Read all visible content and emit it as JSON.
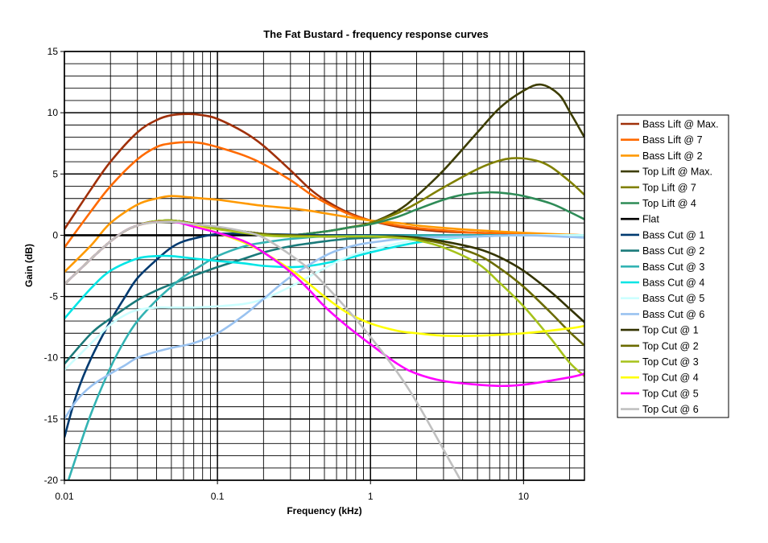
{
  "chart_data": {
    "type": "line",
    "title": "The Fat Bustard - frequency response curves",
    "xlabel": "Frequency (kHz)",
    "ylabel": "Gain (dB)",
    "xscale": "log",
    "xlim": [
      0.01,
      25
    ],
    "ylim": [
      -20,
      15
    ],
    "x_ticks": [
      0.01,
      0.1,
      1,
      10
    ],
    "x_tick_labels": [
      "0.01",
      "0.1",
      "1",
      "10"
    ],
    "y_ticks": [
      15,
      10,
      5,
      0,
      -5,
      -10,
      -15,
      -20
    ],
    "y_tick_labels": [
      "15",
      "10",
      "5",
      "0",
      "-5",
      "-10",
      "-15",
      "-20"
    ],
    "grid": true,
    "legend_position": "right",
    "series": [
      {
        "name": "Bass Lift @ Max.",
        "color": "#a0300a",
        "x": [
          0.01,
          0.015,
          0.02,
          0.03,
          0.04,
          0.05,
          0.065,
          0.08,
          0.1,
          0.15,
          0.2,
          0.3,
          0.4,
          0.5,
          0.7,
          1,
          1.5,
          2,
          3,
          5,
          10,
          25
        ],
        "y": [
          0.5,
          3.8,
          6.0,
          8.4,
          9.4,
          9.8,
          9.9,
          9.8,
          9.5,
          8.4,
          7.3,
          5.3,
          3.8,
          2.9,
          1.9,
          1.2,
          0.7,
          0.5,
          0.3,
          0.2,
          0.1,
          0
        ]
      },
      {
        "name": "Bass Lift @ 7",
        "color": "#ff6a00",
        "x": [
          0.01,
          0.015,
          0.02,
          0.03,
          0.04,
          0.05,
          0.065,
          0.08,
          0.1,
          0.15,
          0.2,
          0.3,
          0.4,
          0.5,
          0.7,
          1,
          1.5,
          2,
          3,
          5,
          10,
          25
        ],
        "y": [
          -1.0,
          2.0,
          4.0,
          6.2,
          7.2,
          7.5,
          7.6,
          7.5,
          7.2,
          6.5,
          5.8,
          4.5,
          3.4,
          2.7,
          1.8,
          1.2,
          0.8,
          0.6,
          0.4,
          0.2,
          0.1,
          0
        ]
      },
      {
        "name": "Bass Lift @ 2",
        "color": "#ff9900",
        "x": [
          0.01,
          0.015,
          0.02,
          0.03,
          0.04,
          0.05,
          0.065,
          0.08,
          0.1,
          0.15,
          0.2,
          0.3,
          0.4,
          0.5,
          0.7,
          1,
          1.5,
          2,
          3,
          5,
          10,
          25
        ],
        "y": [
          -3.0,
          -0.8,
          1.0,
          2.5,
          3.0,
          3.2,
          3.1,
          3.0,
          2.9,
          2.6,
          2.4,
          2.2,
          2.0,
          1.8,
          1.5,
          1.2,
          1.0,
          0.8,
          0.6,
          0.4,
          0.2,
          0
        ]
      },
      {
        "name": "Top Lift @ Max.",
        "color": "#3d3d00",
        "x": [
          0.01,
          0.02,
          0.03,
          0.05,
          0.1,
          0.2,
          0.3,
          0.5,
          0.7,
          1,
          1.5,
          2,
          3,
          5,
          7,
          10,
          13,
          17,
          20,
          25
        ],
        "y": [
          -4.0,
          -0.5,
          0.8,
          1.2,
          0.6,
          0.1,
          0.0,
          0.3,
          0.6,
          1.0,
          2.0,
          3.2,
          5.3,
          8.4,
          10.4,
          11.8,
          12.3,
          11.5,
          10.1,
          8.0
        ]
      },
      {
        "name": "Top Lift @ 7",
        "color": "#808000",
        "x": [
          0.01,
          0.02,
          0.03,
          0.05,
          0.1,
          0.2,
          0.3,
          0.5,
          0.7,
          1,
          1.5,
          2,
          3,
          5,
          7,
          9,
          12,
          15,
          20,
          25
        ],
        "y": [
          -4.0,
          -0.5,
          0.8,
          1.2,
          0.6,
          0.1,
          0.0,
          0.3,
          0.6,
          1.0,
          1.8,
          2.6,
          3.9,
          5.4,
          6.1,
          6.3,
          6.1,
          5.6,
          4.4,
          3.3
        ]
      },
      {
        "name": "Top Lift @ 4",
        "color": "#2e8b57",
        "x": [
          0.01,
          0.02,
          0.03,
          0.05,
          0.1,
          0.2,
          0.3,
          0.5,
          0.7,
          1,
          1.5,
          2,
          3,
          4,
          6,
          8,
          10,
          15,
          20,
          25
        ],
        "y": [
          -4.0,
          -0.5,
          0.8,
          1.2,
          0.6,
          0.1,
          0.0,
          0.3,
          0.6,
          0.9,
          1.5,
          2.1,
          2.9,
          3.3,
          3.5,
          3.4,
          3.2,
          2.6,
          1.9,
          1.3
        ]
      },
      {
        "name": "Flat",
        "color": "#000000",
        "x": [
          0.01,
          25
        ],
        "y": [
          0,
          0
        ]
      },
      {
        "name": "Bass Cut @ 1",
        "color": "#003a70",
        "x": [
          0.01,
          0.012,
          0.015,
          0.02,
          0.025,
          0.03,
          0.04,
          0.05,
          0.06,
          0.08,
          0.1,
          0.15,
          0.2,
          0.3,
          0.5,
          1,
          2,
          5,
          10,
          25
        ],
        "y": [
          -16.5,
          -13.0,
          -10.0,
          -7.0,
          -5.0,
          -3.5,
          -2.0,
          -1.0,
          -0.5,
          -0.1,
          0.1,
          0.15,
          0.1,
          0.05,
          0,
          0,
          0,
          0,
          0,
          0
        ]
      },
      {
        "name": "Bass Cut @ 2",
        "color": "#1a7a7a",
        "x": [
          0.01,
          0.015,
          0.02,
          0.03,
          0.04,
          0.05,
          0.07,
          0.1,
          0.15,
          0.2,
          0.3,
          0.5,
          0.7,
          1,
          1.5,
          2,
          5,
          10,
          25
        ],
        "y": [
          -10.5,
          -8.0,
          -6.8,
          -5.3,
          -4.5,
          -4.0,
          -3.3,
          -2.6,
          -1.9,
          -1.4,
          -0.9,
          -0.5,
          -0.3,
          -0.2,
          -0.1,
          -0.1,
          -0.05,
          0,
          0
        ]
      },
      {
        "name": "Bass Cut @ 3",
        "color": "#33b3b3",
        "x": [
          0.01,
          0.012,
          0.015,
          0.02,
          0.025,
          0.03,
          0.04,
          0.05,
          0.06,
          0.08,
          0.1,
          0.15,
          0.2,
          0.3,
          0.5,
          1,
          2,
          5,
          25
        ],
        "y": [
          -21.0,
          -18.0,
          -14.5,
          -10.8,
          -8.5,
          -7.0,
          -5.3,
          -4.2,
          -3.4,
          -2.4,
          -1.7,
          -0.9,
          -0.6,
          -0.3,
          -0.1,
          -0.05,
          0,
          0,
          0
        ]
      },
      {
        "name": "Bass Cut @ 4",
        "color": "#00e5e5",
        "x": [
          0.01,
          0.015,
          0.02,
          0.03,
          0.04,
          0.05,
          0.07,
          0.1,
          0.15,
          0.2,
          0.3,
          0.4,
          0.5,
          0.7,
          1,
          1.5,
          2,
          3,
          5,
          10,
          25
        ],
        "y": [
          -6.8,
          -4.3,
          -2.9,
          -1.9,
          -1.7,
          -1.7,
          -1.9,
          -2.1,
          -2.3,
          -2.5,
          -2.6,
          -2.5,
          -2.3,
          -1.9,
          -1.4,
          -0.9,
          -0.6,
          -0.3,
          -0.1,
          0,
          0
        ]
      },
      {
        "name": "Bass Cut @ 5",
        "color": "#ccffff",
        "x": [
          0.01,
          0.015,
          0.02,
          0.025,
          0.03,
          0.04,
          0.05,
          0.07,
          0.1,
          0.15,
          0.2,
          0.3,
          0.5,
          0.7,
          1,
          2,
          5,
          10,
          25
        ],
        "y": [
          -11.0,
          -8.8,
          -7.3,
          -6.5,
          -6.1,
          -5.9,
          -5.9,
          -5.9,
          -5.8,
          -5.6,
          -5.2,
          -4.2,
          -2.7,
          -1.8,
          -1.2,
          -0.4,
          -0.1,
          0,
          0
        ]
      },
      {
        "name": "Bass Cut @ 6",
        "color": "#99c2f0",
        "x": [
          0.01,
          0.012,
          0.015,
          0.02,
          0.025,
          0.03,
          0.04,
          0.05,
          0.07,
          0.1,
          0.15,
          0.2,
          0.3,
          0.5,
          0.7,
          1,
          2,
          5,
          10,
          25
        ],
        "y": [
          -15.0,
          -13.5,
          -12.3,
          -11.3,
          -10.6,
          -10.0,
          -9.5,
          -9.2,
          -8.8,
          -8.0,
          -6.5,
          -5.2,
          -3.4,
          -1.7,
          -1.0,
          -0.6,
          -0.2,
          -0.1,
          0,
          -0.2
        ]
      },
      {
        "name": "Top Cut @ 1",
        "color": "#333300",
        "x": [
          0.01,
          0.02,
          0.03,
          0.05,
          0.1,
          0.2,
          0.3,
          0.5,
          0.7,
          1,
          1.5,
          2,
          3,
          5,
          7,
          10,
          15,
          20,
          25
        ],
        "y": [
          -4.0,
          -0.5,
          0.8,
          1.2,
          0.6,
          0.1,
          0.0,
          -0.1,
          -0.1,
          -0.1,
          -0.1,
          -0.2,
          -0.5,
          -1.1,
          -1.8,
          -2.9,
          -4.6,
          -6.0,
          -7.1
        ]
      },
      {
        "name": "Top Cut @ 2",
        "color": "#6b6b00",
        "x": [
          0.01,
          0.02,
          0.03,
          0.05,
          0.1,
          0.2,
          0.3,
          0.5,
          0.7,
          1,
          1.5,
          2,
          3,
          5,
          7,
          10,
          15,
          20,
          25
        ],
        "y": [
          -4.0,
          -0.5,
          0.8,
          1.2,
          0.6,
          0.1,
          0.0,
          -0.1,
          -0.1,
          -0.1,
          -0.2,
          -0.3,
          -0.7,
          -1.6,
          -2.7,
          -4.2,
          -6.3,
          -7.9,
          -9.0
        ]
      },
      {
        "name": "Top Cut @ 3",
        "color": "#a6c21a",
        "x": [
          0.01,
          0.02,
          0.03,
          0.05,
          0.1,
          0.2,
          0.3,
          0.5,
          0.7,
          1,
          1.5,
          2,
          3,
          5,
          7,
          10,
          15,
          20,
          25
        ],
        "y": [
          -4.0,
          -0.5,
          0.8,
          1.2,
          0.5,
          0.0,
          -0.1,
          -0.1,
          -0.1,
          -0.1,
          -0.2,
          -0.4,
          -1.0,
          -2.3,
          -3.9,
          -5.8,
          -8.4,
          -10.4,
          -11.5
        ]
      },
      {
        "name": "Top Cut @ 4",
        "color": "#ffff00",
        "x": [
          0.01,
          0.02,
          0.03,
          0.05,
          0.07,
          0.1,
          0.15,
          0.2,
          0.3,
          0.4,
          0.5,
          0.7,
          1,
          1.5,
          2,
          3,
          5,
          10,
          20,
          25
        ],
        "y": [
          -4.0,
          -0.5,
          0.8,
          1.1,
          0.8,
          0.2,
          -0.6,
          -1.4,
          -2.8,
          -4.0,
          -5.0,
          -6.3,
          -7.2,
          -7.8,
          -8.0,
          -8.2,
          -8.2,
          -8.0,
          -7.6,
          -7.4
        ]
      },
      {
        "name": "Top Cut @ 5",
        "color": "#ff00ff",
        "x": [
          0.01,
          0.02,
          0.03,
          0.05,
          0.07,
          0.1,
          0.15,
          0.2,
          0.3,
          0.4,
          0.5,
          0.7,
          1,
          1.5,
          2,
          3,
          5,
          7,
          10,
          20,
          25
        ],
        "y": [
          -4.0,
          -0.5,
          0.8,
          1.1,
          0.7,
          0.2,
          -0.5,
          -1.4,
          -3.0,
          -4.5,
          -5.8,
          -7.4,
          -8.9,
          -10.5,
          -11.3,
          -11.9,
          -12.2,
          -12.3,
          -12.2,
          -11.6,
          -11.3
        ]
      },
      {
        "name": "Top Cut @ 6",
        "color": "#c0c0c0",
        "x": [
          0.01,
          0.02,
          0.03,
          0.05,
          0.07,
          0.1,
          0.15,
          0.2,
          0.3,
          0.4,
          0.5,
          0.7,
          1,
          1.5,
          2,
          3,
          4,
          5
        ],
        "y": [
          -4.0,
          -0.5,
          0.8,
          1.1,
          0.9,
          0.7,
          0.3,
          -0.2,
          -1.6,
          -2.8,
          -4.0,
          -6.0,
          -8.3,
          -11.2,
          -13.6,
          -17.5,
          -20.3,
          -22.5
        ]
      }
    ]
  }
}
